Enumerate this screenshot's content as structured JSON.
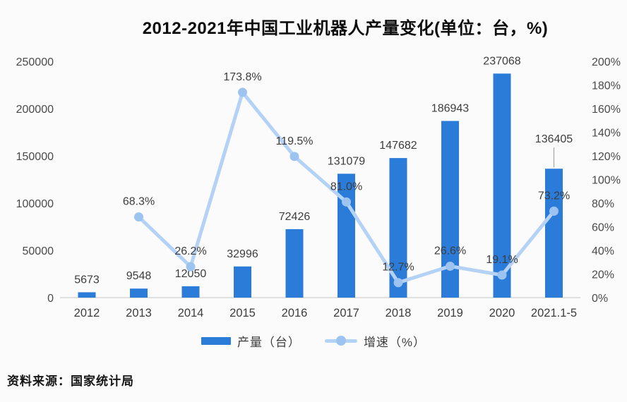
{
  "title": "2012-2021年中国工业机器人产量变化(单位：台，%)",
  "source_note": "资料来源：国家统计局",
  "legend": {
    "production": "产量（台）",
    "growth": "增速（%）"
  },
  "colors": {
    "bar": "#2b7bd9",
    "line": "#b4d2f6",
    "marker": "#9dc4f1",
    "title_text": "#0d0d0d",
    "label_text": "#3d3d3d",
    "tick_text": "#4a4a4a",
    "baseline": "#d8d8d8",
    "leader": "#9a9a9a",
    "background": "#fbfbfb"
  },
  "chart_data": {
    "type": "bar+line combo, dual axis",
    "categories": [
      "2012",
      "2013",
      "2014",
      "2015",
      "2016",
      "2017",
      "2018",
      "2019",
      "2020",
      "2021.1-5"
    ],
    "series": [
      {
        "name": "产量（台）",
        "type": "bar",
        "axis": "left",
        "values": [
          5673,
          9548,
          12050,
          32996,
          72426,
          131079,
          147682,
          186943,
          237068,
          136405
        ],
        "labels": [
          "5673",
          "9548",
          "12050",
          "32996",
          "72426",
          "131079",
          "147682",
          "186943",
          "237068",
          "136405"
        ]
      },
      {
        "name": "增速（%）",
        "type": "line",
        "axis": "right",
        "values": [
          null,
          68.3,
          26.2,
          173.8,
          119.5,
          81.0,
          12.7,
          26.6,
          19.1,
          73.2
        ],
        "labels": [
          null,
          "68.3%",
          "26.2%",
          "173.8%",
          "119.5%",
          "81.0%",
          "12.7%",
          "26.6%",
          "19.1%",
          "73.2%"
        ]
      }
    ],
    "left_axis": {
      "min": 0,
      "max": 250000,
      "step": 50000,
      "ticks": [
        "0",
        "50000",
        "100000",
        "150000",
        "200000",
        "250000"
      ]
    },
    "right_axis": {
      "min": 0,
      "max": 200,
      "step": 20,
      "ticks": [
        "0%",
        "20%",
        "40%",
        "60%",
        "80%",
        "100%",
        "120%",
        "140%",
        "160%",
        "180%",
        "200%"
      ]
    },
    "grid": false,
    "legend_position": "bottom"
  }
}
